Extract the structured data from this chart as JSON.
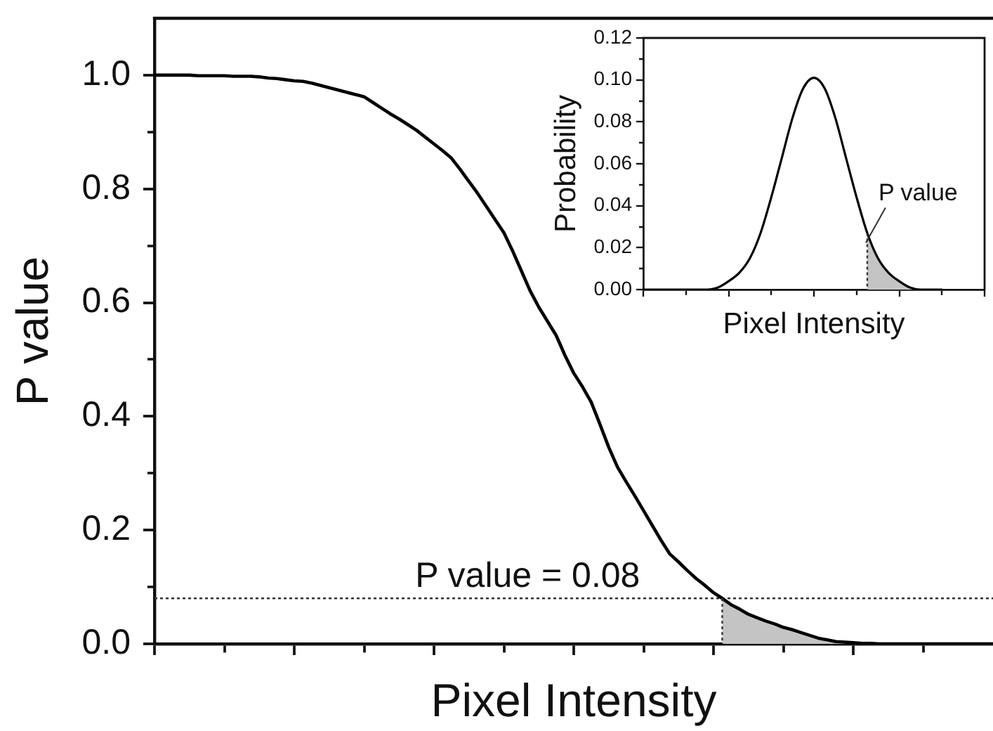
{
  "chart_data": [
    {
      "type": "line",
      "xlabel": "Pixel Intensity",
      "ylabel": "P value",
      "categories": [
        null,
        null,
        null,
        null,
        null,
        null,
        null,
        null,
        null,
        null,
        null,
        null,
        null,
        null,
        null,
        null,
        null,
        null,
        null,
        null,
        null,
        null,
        null,
        null,
        null,
        null,
        null,
        null,
        null,
        null,
        null,
        null,
        null,
        null,
        null,
        null,
        null,
        null,
        null,
        null,
        null,
        null,
        null,
        null,
        null,
        null,
        null,
        null,
        null,
        null,
        null,
        null,
        null,
        null,
        null,
        null,
        null,
        null,
        null,
        null,
        null,
        null,
        null,
        null,
        null,
        null,
        null,
        null,
        null,
        null,
        null,
        null,
        null,
        null,
        null,
        null,
        null,
        null,
        null,
        null,
        null,
        null,
        null,
        null,
        null,
        null,
        null,
        null,
        null,
        null,
        null,
        null,
        null,
        null,
        null,
        null,
        null
      ],
      "series": [
        {
          "color": "#000000",
          "values": [
            1,
            1,
            1,
            1,
            1,
            0.999,
            0.999,
            0.999,
            0.999,
            0.998,
            0.998,
            0.998,
            0.997,
            0.995,
            0.994,
            0.992,
            0.99,
            0.989,
            0.986,
            0.982,
            0.978,
            0.974,
            0.97,
            0.966,
            0.962,
            0.952,
            0.942,
            0.932,
            0.923,
            0.913,
            0.903,
            0.891,
            0.879,
            0.867,
            0.854,
            0.834,
            0.813,
            0.792,
            0.769,
            0.746,
            0.723,
            0.691,
            0.656,
            0.621,
            0.592,
            0.567,
            0.542,
            0.507,
            0.476,
            0.452,
            0.425,
            0.386,
            0.346,
            0.311,
            0.285,
            0.26,
            0.234,
            0.208,
            0.182,
            0.158,
            0.144,
            0.129,
            0.115,
            0.103,
            0.09,
            0.08,
            0.069,
            0.061,
            0.052,
            0.046,
            0.04,
            0.035,
            0.029,
            0.025,
            0.02,
            0.015,
            0.01,
            0.007,
            0.004,
            0.003,
            0.002,
            0.001,
            0.001,
            0,
            0,
            0,
            0,
            0,
            0,
            0,
            0,
            0,
            0,
            0,
            0,
            0,
            0
          ]
        },
        {
          "type": "area",
          "color": "#c4c4c4",
          "values": [
            null,
            null,
            null,
            null,
            null,
            null,
            null,
            null,
            null,
            null,
            null,
            null,
            null,
            null,
            null,
            null,
            null,
            null,
            null,
            null,
            null,
            null,
            null,
            null,
            null,
            null,
            null,
            null,
            null,
            null,
            null,
            null,
            null,
            null,
            null,
            null,
            null,
            null,
            null,
            null,
            null,
            null,
            null,
            null,
            null,
            null,
            null,
            null,
            null,
            null,
            null,
            null,
            null,
            null,
            null,
            null,
            null,
            null,
            null,
            null,
            null,
            null,
            null,
            null,
            null,
            0.08,
            0.069,
            0.061,
            0.052,
            0.046,
            0.04,
            0.035,
            0.029,
            0.025,
            0.02,
            0.015,
            0.01,
            0.007,
            0.004,
            0.003,
            0.002,
            0.001,
            0.001,
            0,
            0,
            0,
            0,
            0,
            0,
            0,
            0,
            0,
            0,
            0,
            0,
            0,
            0
          ]
        }
      ],
      "ylim": [
        0,
        1.1
      ],
      "yticks": [
        {
          "value": 0,
          "label": "0.0"
        },
        {
          "value": 0.1,
          "label": null
        },
        0.2,
        {
          "value": 0.3,
          "label": null
        },
        0.4,
        {
          "value": 0.5,
          "label": null
        },
        0.6,
        {
          "value": 0.7,
          "label": null
        },
        0.8,
        {
          "value": 0.9,
          "label": null
        },
        {
          "value": 1,
          "label": "1.0"
        }
      ],
      "ref_lines": [
        {
          "axis": "y",
          "value": 0.08,
          "label": "P value = 0.08",
          "line_style": "dotted",
          "color": "#333333"
        }
      ],
      "grid": false,
      "legend": false,
      "marker": "none",
      "tick_labels": "y"
    },
    {
      "type": "line",
      "xlabel": "Pixel Intensity",
      "ylabel": "Probability",
      "annotations": [
        "P value"
      ],
      "categories": [
        null,
        null,
        null,
        null,
        null,
        null,
        null,
        null,
        null,
        null,
        null,
        null,
        null,
        null,
        null,
        null,
        null,
        null,
        null,
        null,
        null,
        null,
        null,
        null,
        null,
        null,
        null,
        null,
        null,
        null,
        null,
        null,
        null
      ],
      "series": [
        {
          "color": "#000000",
          "values": [
            0,
            0,
            0,
            0,
            0,
            0,
            0,
            0.001,
            0.004,
            0.008,
            0.015,
            0.027,
            0.044,
            0.063,
            0.082,
            0.096,
            0.101,
            0.096,
            0.082,
            0.063,
            0.044,
            0.027,
            0.015,
            0.008,
            0.004,
            0.001,
            0,
            0,
            0,
            null,
            null,
            null,
            null
          ]
        },
        {
          "type": "area",
          "color": "#c4c4c4",
          "values": [
            null,
            null,
            null,
            null,
            null,
            null,
            null,
            null,
            null,
            null,
            null,
            null,
            null,
            null,
            null,
            null,
            null,
            null,
            null,
            null,
            null,
            0.027,
            0.015,
            0.008,
            0.004,
            0.001,
            0,
            0,
            0,
            null,
            null,
            null,
            null
          ]
        }
      ],
      "ylim": [
        0,
        0.12
      ],
      "yticks": [
        {
          "value": 0,
          "label": "0.00"
        },
        {
          "value": 0.01,
          "label": null
        },
        0.02,
        {
          "value": 0.03,
          "label": null
        },
        0.04,
        {
          "value": 0.05,
          "label": null
        },
        0.06,
        {
          "value": 0.07,
          "label": null
        },
        0.08,
        {
          "value": 0.09,
          "label": null
        },
        {
          "value": 0.1,
          "label": "0.10"
        },
        {
          "value": 0.11,
          "label": null
        },
        0.12
      ],
      "grid": false,
      "legend": false,
      "marker": "none",
      "tick_labels": "y"
    }
  ]
}
